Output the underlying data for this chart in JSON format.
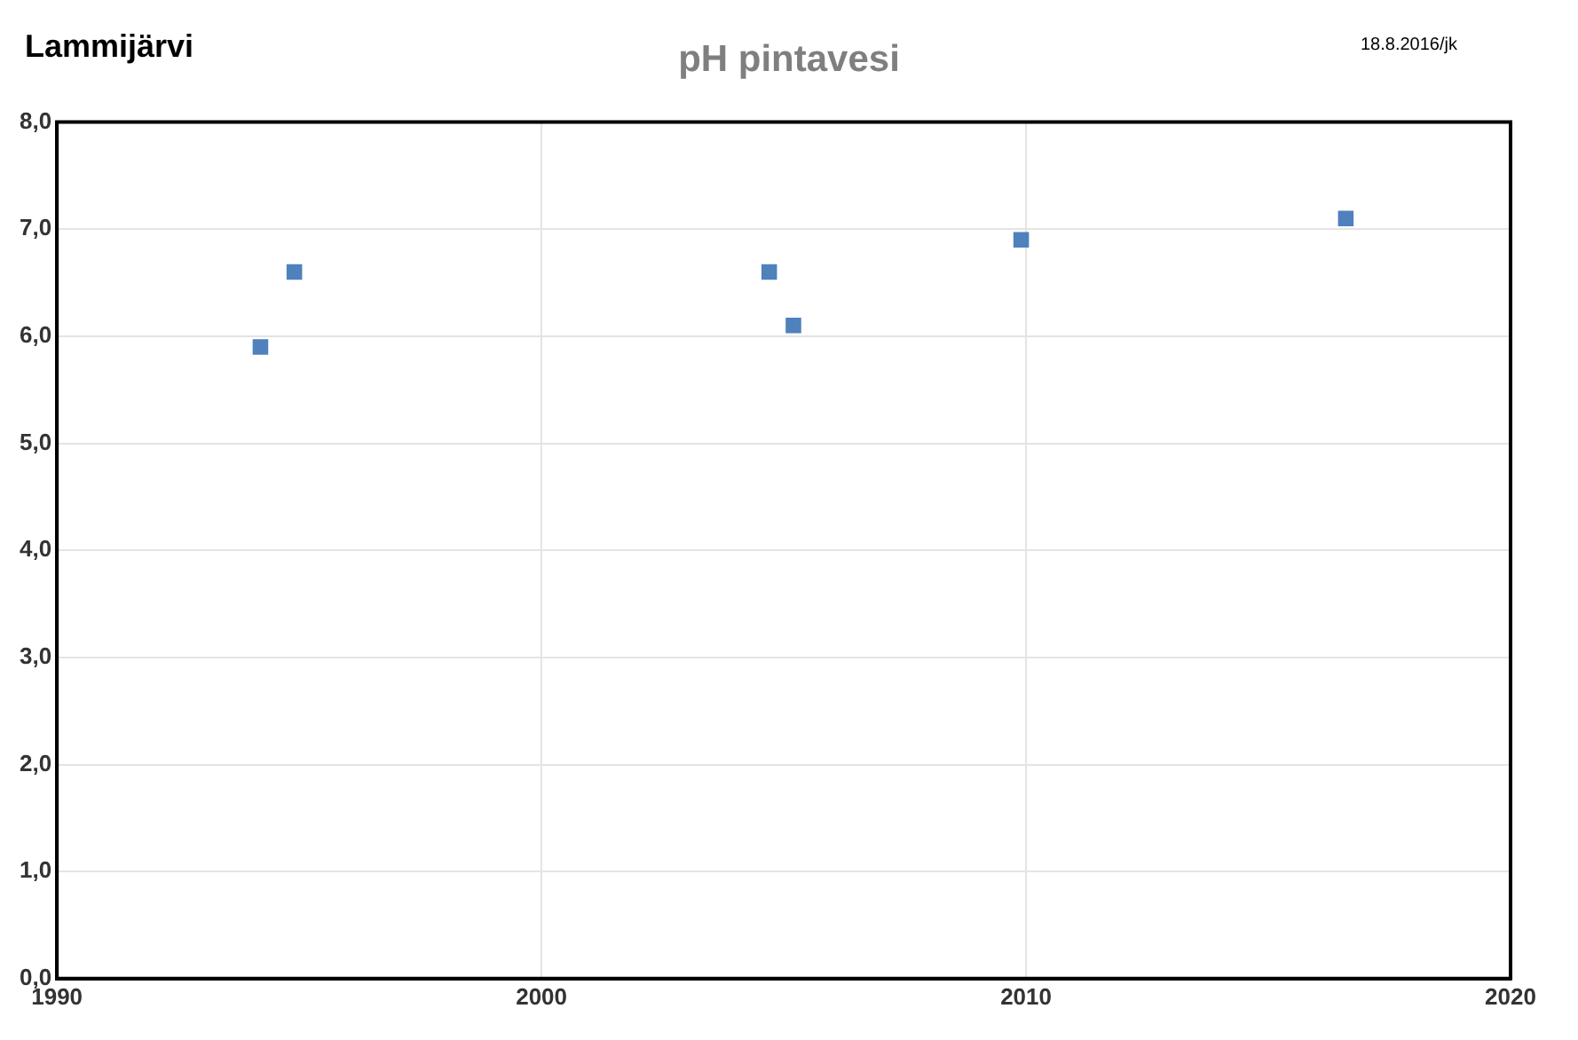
{
  "chart_data": {
    "type": "scatter",
    "title": "pH pintavesi",
    "annotations": [
      "Lammijärvi",
      "18.8.2016/jk"
    ],
    "x": [
      1994.2,
      1994.9,
      2004.7,
      2005.2,
      2009.9,
      2016.6
    ],
    "series": [
      {
        "color": "#4f81bd",
        "values": [
          5.9,
          6.6,
          6.6,
          6.1,
          6.9,
          7.1
        ]
      }
    ],
    "xlim": [
      1990,
      2020
    ],
    "xticks": [
      1990,
      2000,
      2010,
      2020
    ],
    "ylim": [
      0,
      8
    ],
    "yticks": [
      {
        "value": 0,
        "label": "0,0"
      },
      {
        "value": 1,
        "label": "1,0"
      },
      {
        "value": 2,
        "label": "2,0"
      },
      {
        "value": 3,
        "label": "3,0"
      },
      {
        "value": 4,
        "label": "4,0"
      },
      {
        "value": 5,
        "label": "5,0"
      },
      {
        "value": 6,
        "label": "6,0"
      },
      {
        "value": 7,
        "label": "7,0"
      },
      {
        "value": 8,
        "label": "8,0"
      }
    ],
    "grid": true,
    "legend": false,
    "marker": "square"
  }
}
